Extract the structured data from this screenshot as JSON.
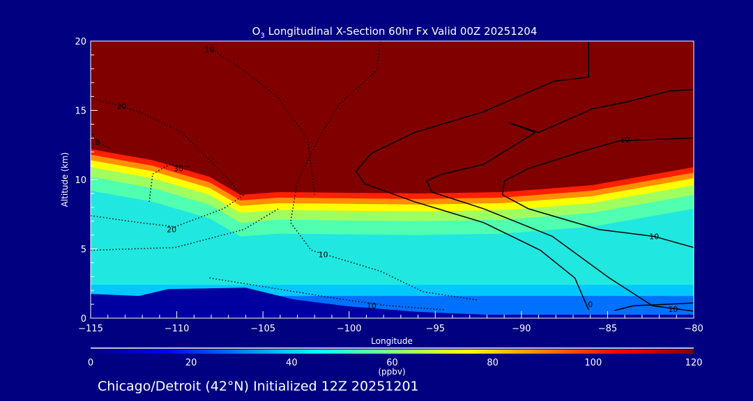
{
  "chart_data": {
    "type": "heatmap",
    "title_prefix": "O",
    "title_sub": "3",
    "title_rest": " Longitudinal X-Section 60hr  Fx Valid 00Z 20251204",
    "xlabel": "Longitude",
    "ylabel": "Altitude (km)",
    "xlim": [
      -115,
      -80
    ],
    "ylim": [
      0,
      20
    ],
    "xticks": [
      -115,
      -110,
      -105,
      -100,
      -95,
      -90,
      -85,
      -80
    ],
    "xtick_labels": [
      "−115",
      "−110",
      "−105",
      "−100",
      "−95",
      "−90",
      "−85",
      "−80"
    ],
    "yticks": [
      0,
      5,
      10,
      15,
      20
    ],
    "ytick_labels": [
      "0",
      "5",
      "10",
      "15",
      "20"
    ],
    "colorbar": {
      "range": [
        0,
        120
      ],
      "ticks": [
        "0",
        "20",
        "40",
        "60",
        "80",
        "100",
        "120"
      ],
      "unit": "(ppbv)",
      "colors": [
        "#000080",
        "#0000ff",
        "#0080ff",
        "#00ffff",
        "#80ff80",
        "#ffff00",
        "#ff8000",
        "#ff0000",
        "#800000"
      ]
    },
    "field": {
      "high_ozone_boundary": [
        [
          -115,
          12.2
        ],
        [
          -111.4,
          11.4
        ],
        [
          -108.1,
          10.2
        ],
        [
          -106.3,
          8.9
        ],
        [
          -104.1,
          9.1
        ],
        [
          -96.0,
          9.0
        ],
        [
          -91.1,
          9.1
        ],
        [
          -85.9,
          9.6
        ],
        [
          -80,
          10.9
        ]
      ],
      "bands_below_boundary_km": [
        0,
        0.4,
        0.8,
        1.3,
        2.0,
        3.0
      ],
      "band_colors": [
        "#ff2000",
        "#ff9000",
        "#ffff00",
        "#a0ff60",
        "#50ffb0",
        "#20e8e0"
      ],
      "lower_layers": [
        {
          "top_km": 2.4,
          "color": "#00c8ff"
        },
        {
          "top_km": 1.6,
          "color": "#0070ff"
        }
      ],
      "terrain": [
        [
          -115,
          1.75
        ],
        [
          -112.2,
          1.6
        ],
        [
          -110.5,
          2.1
        ],
        [
          -106,
          2.2
        ],
        [
          -103.2,
          1.35
        ],
        [
          -100,
          0.85
        ],
        [
          -96,
          0.45
        ],
        [
          -92,
          0.25
        ],
        [
          -80,
          0.25
        ]
      ]
    },
    "contours": [
      {
        "level": 0,
        "style": "solid",
        "label": "0",
        "points": [
          [
            -86.1,
            20
          ],
          [
            -86.1,
            17.4
          ],
          [
            -88.1,
            17.1
          ],
          [
            -92.2,
            14.9
          ],
          [
            -96.2,
            13.4
          ],
          [
            -98.7,
            11.9
          ],
          [
            -99.6,
            10.6
          ],
          [
            -99.1,
            9.7
          ],
          [
            -96.2,
            8.4
          ],
          [
            -92.2,
            6.9
          ],
          [
            -88.9,
            4.9
          ],
          [
            -86.9,
            2.9
          ],
          [
            -86.1,
            0.6
          ]
        ],
        "label_at": [
          -86.0,
          1.0
        ]
      },
      {
        "level": 10,
        "style": "solid",
        "label": "10",
        "points": [
          [
            -80,
            16.5
          ],
          [
            -81.4,
            16.4
          ],
          [
            -83.9,
            15.6
          ],
          [
            -85.9,
            15.1
          ],
          [
            -89.0,
            13.4
          ],
          [
            -90.7,
            14.1
          ],
          [
            -89.2,
            13.4
          ],
          [
            -92.2,
            11.1
          ],
          [
            -94.6,
            10.4
          ],
          [
            -95.5,
            9.9
          ],
          [
            -95.2,
            9.1
          ],
          [
            -92.2,
            7.9
          ],
          [
            -88.2,
            5.9
          ],
          [
            -84.9,
            2.9
          ],
          [
            -82.4,
            0.9
          ],
          [
            -80,
            0.5
          ]
        ],
        "label_at": [
          -84.0,
          12.9
        ]
      },
      {
        "level": 10,
        "style": "solid",
        "label": "10",
        "points": [
          [
            -80,
            13.0
          ],
          [
            -84.3,
            12.8
          ],
          [
            -86.3,
            12.1
          ],
          [
            -89.6,
            10.8
          ],
          [
            -91.0,
            9.9
          ],
          [
            -91.1,
            8.9
          ],
          [
            -89.6,
            7.9
          ],
          [
            -85.5,
            6.4
          ],
          [
            -82.3,
            5.9
          ],
          [
            -80,
            5.1
          ]
        ],
        "label_at": [
          -82.3,
          5.9
        ]
      },
      {
        "level": 10,
        "style": "solid",
        "label": "10",
        "points": [
          [
            -80,
            1.1
          ],
          [
            -81.6,
            1.0
          ],
          [
            -83.5,
            0.9
          ],
          [
            -84.6,
            0.55
          ]
        ],
        "label_at": [
          -81.2,
          0.65
        ]
      },
      {
        "level": -10,
        "style": "dotted",
        "label": "10",
        "points": [
          [
            -98.2,
            20
          ],
          [
            -98.4,
            17.9
          ],
          [
            -100.6,
            15.4
          ],
          [
            -101.8,
            12.9
          ],
          [
            -103.0,
            9.9
          ],
          [
            -103.4,
            6.9
          ],
          [
            -102.2,
            4.9
          ],
          [
            -98.2,
            3.4
          ],
          [
            -95.7,
            1.9
          ],
          [
            -92.5,
            1.3
          ]
        ],
        "label_at": [
          -101.5,
          4.6
        ]
      },
      {
        "level": -10,
        "style": "dotted",
        "label": "10",
        "points": [
          [
            -108.1,
            2.9
          ],
          [
            -104.1,
            2.1
          ],
          [
            -100.1,
            1.3
          ],
          [
            -97.7,
            0.9
          ],
          [
            -94.5,
            0.6
          ]
        ],
        "label_at": [
          -98.7,
          0.9
        ]
      },
      {
        "level": -20,
        "style": "dotted",
        "label": "20",
        "points": [
          [
            -115,
            15.9
          ],
          [
            -112.2,
            14.9
          ],
          [
            -109.7,
            13.4
          ],
          [
            -108.1,
            11.4
          ],
          [
            -106.9,
            9.9
          ],
          [
            -106.3,
            8.9
          ]
        ],
        "label_at": [
          -113.2,
          15.3
        ]
      },
      {
        "level": -20,
        "style": "dotted",
        "label": "10",
        "points": [
          [
            -108.1,
            19.5
          ],
          [
            -106.1,
            17.9
          ],
          [
            -104.1,
            15.9
          ],
          [
            -102.4,
            12.9
          ],
          [
            -102.0,
            8.9
          ]
        ],
        "label_at": [
          -108.1,
          19.4
        ]
      },
      {
        "level": -20,
        "style": "dotted",
        "label": "20",
        "points": [
          [
            -115,
            7.4
          ],
          [
            -112.2,
            6.9
          ],
          [
            -110.1,
            6.6
          ],
          [
            -107.3,
            7.9
          ],
          [
            -106.1,
            8.9
          ]
        ],
        "label_at": [
          -110.3,
          6.4
        ]
      },
      {
        "level": -20,
        "style": "dotted",
        "label": "",
        "points": [
          [
            -115,
            4.9
          ],
          [
            -110.1,
            5.1
          ],
          [
            -106.1,
            6.4
          ],
          [
            -104.1,
            7.9
          ]
        ],
        "label_at": null
      },
      {
        "level": -30,
        "style": "dotted",
        "label": "30",
        "points": [
          [
            -111.6,
            8.4
          ],
          [
            -111.4,
            10.4
          ],
          [
            -110.4,
            11.1
          ],
          [
            -109.2,
            10.9
          ]
        ],
        "label_at": [
          -109.9,
          10.8
        ]
      },
      {
        "level": -10,
        "style": "dotted",
        "label": "0",
        "points": [
          [
            -115,
            13.5
          ],
          [
            -114.6,
            12.7
          ],
          [
            -113.8,
            12.2
          ]
        ],
        "label_at": [
          -114.6,
          12.7
        ]
      }
    ]
  },
  "footer": {
    "caption": "Chicago/Detroit (42°N) Initialized 12Z 20251201"
  }
}
